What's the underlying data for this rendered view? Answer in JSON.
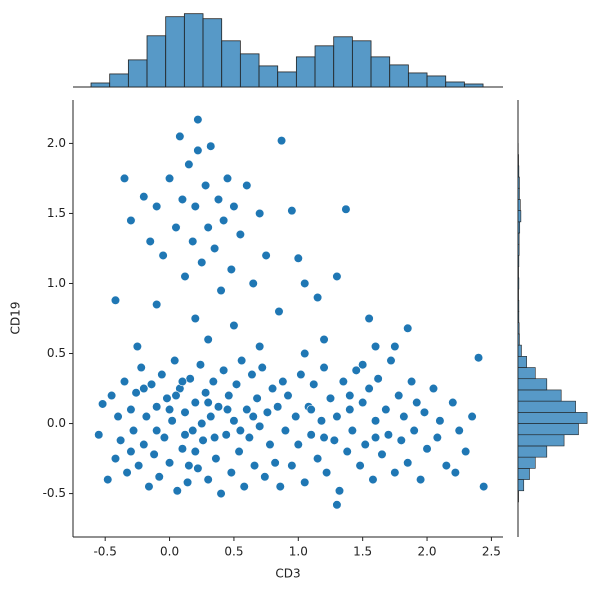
{
  "chart_data": [
    {
      "type": "scatter",
      "x_label": "CD3",
      "y_label": "CD19",
      "color": "#1f77b4",
      "xlim": [
        -0.75,
        2.59
      ],
      "ylim": [
        -0.81,
        2.31
      ],
      "xticks": [
        -0.5,
        0.0,
        0.5,
        1.0,
        1.5,
        2.0,
        2.5
      ],
      "yticks": [
        -0.5,
        0.0,
        0.5,
        1.0,
        1.5,
        2.0
      ],
      "x": [
        -0.55,
        -0.52,
        -0.48,
        -0.45,
        -0.42,
        -0.4,
        -0.38,
        -0.35,
        -0.33,
        -0.3,
        -0.28,
        -0.26,
        -0.24,
        -0.22,
        -0.2,
        -0.18,
        -0.16,
        -0.14,
        -0.12,
        -0.1,
        -0.08,
        -0.06,
        -0.04,
        -0.02,
        0,
        0.02,
        0.04,
        0.06,
        0.08,
        0.1,
        0.12,
        0.14,
        0.16,
        0.18,
        0.2,
        0.22,
        0.24,
        0.26,
        0.28,
        0.3,
        0.32,
        0.34,
        0.36,
        0.38,
        0.4,
        0.42,
        0.44,
        0.46,
        0.48,
        0.5,
        0.52,
        0.54,
        0.56,
        0.58,
        0.6,
        0.62,
        0.64,
        0.66,
        0.68,
        0.7,
        0.72,
        0.74,
        0.76,
        0.78,
        0.8,
        0.82,
        0.84,
        0.86,
        0.88,
        0.9,
        0,
        0.1,
        0.2,
        0.3,
        0.15,
        -0.1,
        0.05,
        0.25,
        0.35,
        0.45,
        -0.2,
        0.55,
        0.65,
        -0.3,
        0.12,
        0.92,
        0.95,
        0.98,
        1.0,
        1.02,
        1.05,
        1.08,
        1.1,
        1.12,
        1.15,
        1.18,
        1.2,
        1.22,
        1.25,
        1.28,
        1.3,
        1.32,
        1.35,
        1.38,
        1.4,
        1.42,
        1.45,
        1.48,
        1.5,
        1.52,
        1.55,
        1.58,
        1.6,
        1.62,
        1.65,
        1.68,
        1.7,
        1.72,
        1.75,
        1.78,
        1.8,
        1.82,
        1.85,
        1.88,
        1.9,
        1.92,
        1.95,
        1.98,
        2.0,
        2.05,
        2.08,
        2.1,
        2.15,
        2.2,
        2.25,
        2.3,
        2.35,
        2.4,
        2.44,
        2.22,
        1.3,
        1.05,
        1.6,
        1.85,
        1.5,
        1.2,
        1.4,
        1.6,
        1.1,
        -0.35,
        -0.3,
        -0.2,
        -0.15,
        -0.1,
        -0.05,
        0,
        0.05,
        0.08,
        0.1,
        0.12,
        0.15,
        0.18,
        0.2,
        0.22,
        0.25,
        0.28,
        0.3,
        0.32,
        0.35,
        0.38,
        0.4,
        0.42,
        0.45,
        0.48,
        0.5,
        0.55,
        0.6,
        0.65,
        0.7,
        0.75,
        0.22,
        -0.42,
        0.87,
        1.0,
        1.3,
        1.37,
        0.95,
        0.85,
        1.15,
        0.5,
        0.2,
        -0.1,
        1.55,
        1.75,
        0.3,
        -0.25,
        0.7,
        1.05,
        1.2
      ],
      "values": [
        -0.08,
        0.14,
        -0.4,
        0.2,
        -0.25,
        0.05,
        -0.12,
        0.3,
        -0.35,
        0.1,
        -0.05,
        0.22,
        -0.3,
        0.4,
        -0.15,
        0.05,
        -0.45,
        0.28,
        -0.22,
        0.12,
        -0.38,
        0.35,
        -0.1,
        0.18,
        -0.28,
        0.02,
        0.45,
        -0.48,
        0.25,
        -0.18,
        0.08,
        -0.42,
        0.32,
        -0.05,
        0.15,
        -0.32,
        0.42,
        -0.12,
        0.22,
        -0.4,
        0.05,
        0.3,
        -0.25,
        0.12,
        -0.5,
        0.38,
        -0.08,
        0.2,
        -0.35,
        0.02,
        0.28,
        -0.2,
        0.45,
        -0.45,
        0.1,
        -0.1,
        0.35,
        -0.3,
        0.18,
        -0.02,
        0.4,
        -0.38,
        0.08,
        -0.15,
        0.25,
        -0.28,
        0.12,
        -0.45,
        0.3,
        -0.05,
        0.1,
        0.3,
        -0.2,
        0.15,
        -0.3,
        -0.05,
        0.2,
        0,
        -0.1,
        0.1,
        0.25,
        -0.05,
        0.05,
        -0.2,
        -0.08,
        0.2,
        -0.3,
        0.05,
        -0.15,
        0.35,
        -0.42,
        0.12,
        -0.08,
        0.28,
        -0.25,
        0.02,
        0.4,
        -0.35,
        0.18,
        -0.12,
        0.05,
        -0.48,
        0.3,
        -0.2,
        0.1,
        -0.05,
        0.38,
        -0.3,
        0.15,
        -0.15,
        0.25,
        -0.4,
        0.02,
        0.32,
        -0.22,
        0.1,
        -0.08,
        0.45,
        -0.35,
        0.2,
        -0.12,
        0.05,
        -0.28,
        0.3,
        -0.05,
        0.15,
        -0.4,
        0.08,
        -0.18,
        0.25,
        -0.1,
        0.02,
        -0.3,
        0.15,
        -0.05,
        -0.2,
        0.05,
        0.47,
        -0.45,
        -0.35,
        -0.58,
        0.5,
        0.55,
        0.68,
        0.42,
        -0.1,
        0.2,
        -0.1,
        0.1,
        1.75,
        1.45,
        1.62,
        1.3,
        1.55,
        1.2,
        1.75,
        1.4,
        2.05,
        1.6,
        1.05,
        1.85,
        1.3,
        1.55,
        1.95,
        1.15,
        1.7,
        1.4,
        1.98,
        1.25,
        1.6,
        0.95,
        1.45,
        1.75,
        1.1,
        1.55,
        1.35,
        1.7,
        1.0,
        1.5,
        1.2,
        2.17,
        0.88,
        2.02,
        1.18,
        1.05,
        1.53,
        1.52,
        0.8,
        0.9,
        0.7,
        0.75,
        0.85,
        0.75,
        0.55,
        0.6,
        0.55,
        0.55,
        1.0,
        0.6
      ]
    },
    {
      "type": "histogram",
      "orientation": "vertical",
      "color": "#1f77b4",
      "ylim": [
        0,
        460
      ],
      "bins": [
        -0.61,
        -0.465,
        -0.32,
        -0.175,
        -0.03,
        0.115,
        0.26,
        0.405,
        0.55,
        0.695,
        0.84,
        0.985,
        1.13,
        1.275,
        1.42,
        1.565,
        1.71,
        1.855,
        2.0,
        2.145,
        2.29,
        2.435
      ],
      "values": [
        24,
        78,
        162,
        306,
        420,
        438,
        408,
        276,
        198,
        126,
        90,
        180,
        246,
        300,
        276,
        180,
        132,
        84,
        66,
        30,
        18
      ]
    },
    {
      "type": "histogram",
      "orientation": "horizontal",
      "color": "#1f77b4",
      "xlim": [
        0,
        250
      ],
      "bins": [
        -0.56,
        -0.48,
        -0.4,
        -0.32,
        -0.24,
        -0.16,
        -0.08,
        0,
        0.08,
        0.16,
        0.24,
        0.32,
        0.4,
        0.48,
        0.56,
        0.64,
        0.72,
        0.8,
        0.88,
        0.96,
        1.04,
        1.12,
        1.2,
        1.28,
        1.36,
        1.44,
        1.52,
        1.6,
        1.68,
        1.76,
        1.84,
        1.92,
        2.0
      ],
      "values": [
        2,
        20,
        40,
        60,
        100,
        160,
        210,
        240,
        200,
        150,
        100,
        60,
        30,
        12,
        5,
        4,
        3,
        3,
        2,
        3,
        2,
        3,
        4,
        4,
        6,
        10,
        8,
        5,
        5,
        3,
        2,
        1
      ]
    }
  ]
}
